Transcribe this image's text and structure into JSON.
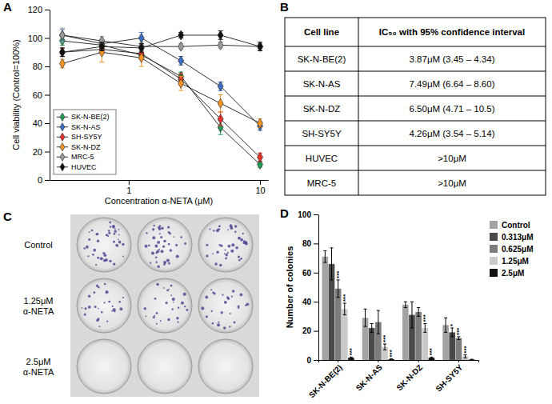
{
  "chart_data": [
    {
      "type": "line",
      "title": "A",
      "x_label": "Concentration α-NETA (μM)",
      "y_label": "Cell viability (Control=100%)",
      "x": [
        0.3125,
        0.625,
        1.25,
        2.5,
        5,
        10
      ],
      "xlim": [
        0.25,
        11.5
      ],
      "ylim": [
        0,
        120
      ],
      "xticks": [
        1,
        10
      ],
      "yticks": [
        0,
        20,
        40,
        60,
        80,
        100,
        120
      ],
      "log": "x",
      "legend": "lower left",
      "marker": "diamond",
      "series": [
        {
          "name": "SK-N-BE(2)",
          "color": "#1f9a55",
          "values": [
            98,
            95,
            88,
            73,
            37,
            11
          ],
          "errors": [
            3,
            2,
            3,
            3,
            5,
            2
          ]
        },
        {
          "name": "SK-N-AS",
          "color": "#3d6cc0",
          "values": [
            102,
            96,
            100,
            84,
            66,
            38
          ],
          "errors": [
            4,
            3,
            4,
            3,
            3,
            3
          ]
        },
        {
          "name": "SH-SY5Y",
          "color": "#e4312b",
          "values": [
            90,
            92,
            89,
            71,
            43,
            16
          ],
          "errors": [
            3,
            3,
            4,
            4,
            5,
            3
          ]
        },
        {
          "name": "SK-N-DZ",
          "color": "#f39425",
          "values": [
            82,
            90,
            86,
            68,
            54,
            40
          ],
          "errors": [
            3,
            7,
            6,
            5,
            6,
            3
          ]
        },
        {
          "name": "MRC-5",
          "color": "#9a9a9a",
          "values": [
            102,
            98,
            94,
            94,
            95,
            94
          ],
          "errors": [
            5,
            3,
            3,
            2,
            2,
            2
          ]
        },
        {
          "name": "HUVEC",
          "color": "#111111",
          "values": [
            90,
            94,
            93,
            102,
            102,
            94
          ],
          "errors": [
            3,
            3,
            3,
            2,
            3,
            3
          ]
        }
      ]
    },
    {
      "type": "bar",
      "title": "D",
      "y_label": "Number of colonies",
      "categories": [
        "SK-N-BE(2)",
        "SK-N-AS",
        "SK-N-DZ",
        "SH-SY5Y"
      ],
      "ylim": [
        0,
        100
      ],
      "yticks": [
        0,
        20,
        40,
        60,
        80,
        100
      ],
      "legend": "upper right",
      "series": [
        {
          "name": "Control",
          "color": "#a3a3a3",
          "values": [
            71,
            29,
            38,
            24
          ],
          "errors": [
            4,
            6,
            2,
            5
          ],
          "annotations": [
            null,
            null,
            null,
            null
          ]
        },
        {
          "name": "0.313μM",
          "color": "#4a4a4a",
          "values": [
            66,
            22,
            31,
            19
          ],
          "errors": [
            11,
            3,
            9,
            3
          ],
          "annotations": [
            null,
            null,
            null,
            "*"
          ]
        },
        {
          "name": "0.625μM",
          "color": "#7d7d7d",
          "values": [
            49,
            26,
            33,
            15
          ],
          "errors": [
            6,
            8,
            3,
            1
          ],
          "annotations": [
            "***",
            null,
            null,
            "***"
          ]
        },
        {
          "name": "1.25μM",
          "color": "#cacaca",
          "values": [
            35,
            9,
            22,
            2.5
          ],
          "errors": [
            4,
            2,
            3,
            1
          ],
          "annotations": [
            "***",
            "***",
            "***",
            "***"
          ]
        },
        {
          "name": "2.5μM",
          "color": "#111111",
          "values": [
            1.5,
            0.5,
            1.5,
            0.3
          ],
          "errors": [
            0.5,
            0.3,
            0.5,
            0.2
          ],
          "annotations": [
            "***",
            "***",
            "***",
            null
          ]
        }
      ]
    }
  ],
  "table": {
    "label": "B",
    "header": [
      "Cell line",
      "IC₅₀ with 95% confidence interval"
    ],
    "rows": [
      [
        "SK-N-BE(2)",
        "3.87μM (3.45 – 4.34)"
      ],
      [
        "SK-N-AS",
        "7.49μM (6.64 – 8.60)"
      ],
      [
        "SK-N-DZ",
        "6.50μM (4.71 – 10.5)"
      ],
      [
        "SH-SY5Y",
        "4.26μM (3.54 – 5.14)"
      ],
      [
        "HUVEC",
        ">10μM"
      ],
      [
        "MRC-5",
        ">10μM"
      ]
    ]
  },
  "image_panel": {
    "label": "C",
    "rows": [
      [
        "Control"
      ],
      [
        "1.25μM",
        "α-NETA"
      ],
      [
        "2.5μM",
        "α-NETA"
      ]
    ]
  }
}
